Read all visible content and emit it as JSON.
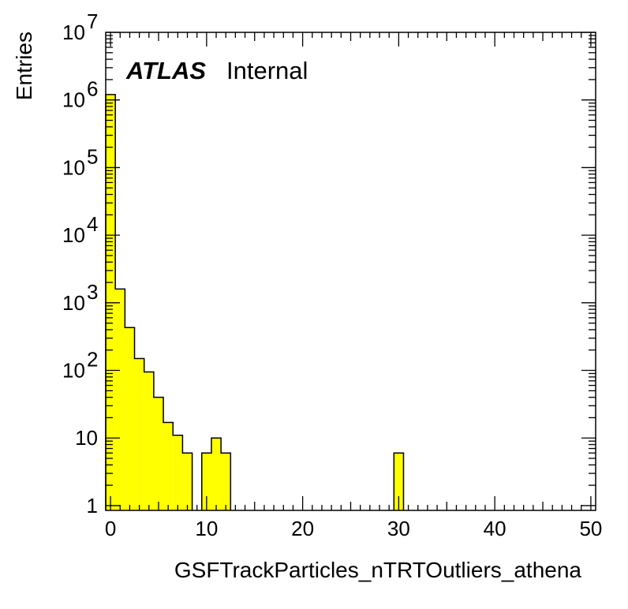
{
  "chart_data": {
    "type": "bar",
    "style": "histogram",
    "xlabel": "GSFTrackParticles_nTRTOutliers_athena",
    "ylabel": "Entries",
    "annotation": {
      "experiment": "ATLAS",
      "status": "Internal"
    },
    "xlim": [
      -0.5,
      50.5
    ],
    "ylim": [
      0.85,
      10000000
    ],
    "yscale": "log",
    "bin_width": 1,
    "fill_color": "#ffff00",
    "edge_color": "#000000",
    "xticks": [
      0,
      10,
      20,
      30,
      40,
      50
    ],
    "xtick_labels": [
      "0",
      "10",
      "20",
      "30",
      "40",
      "50"
    ],
    "yticks": [
      1,
      10,
      100,
      1000,
      10000,
      100000,
      1000000,
      10000000
    ],
    "ytick_labels": [
      {
        "base": "1",
        "exp": ""
      },
      {
        "base": "10",
        "exp": ""
      },
      {
        "base": "10",
        "exp": "2"
      },
      {
        "base": "10",
        "exp": "3"
      },
      {
        "base": "10",
        "exp": "4"
      },
      {
        "base": "10",
        "exp": "5"
      },
      {
        "base": "10",
        "exp": "6"
      },
      {
        "base": "10",
        "exp": "7"
      }
    ],
    "bins": [
      {
        "x": 0,
        "value": 1200000
      },
      {
        "x": 1,
        "value": 1600
      },
      {
        "x": 2,
        "value": 430
      },
      {
        "x": 3,
        "value": 150
      },
      {
        "x": 4,
        "value": 95
      },
      {
        "x": 5,
        "value": 40
      },
      {
        "x": 6,
        "value": 17
      },
      {
        "x": 7,
        "value": 11
      },
      {
        "x": 8,
        "value": 6
      },
      {
        "x": 9,
        "value": 0
      },
      {
        "x": 10,
        "value": 6
      },
      {
        "x": 11,
        "value": 10
      },
      {
        "x": 12,
        "value": 6
      },
      {
        "x": 30,
        "value": 6
      }
    ],
    "grid": false
  }
}
